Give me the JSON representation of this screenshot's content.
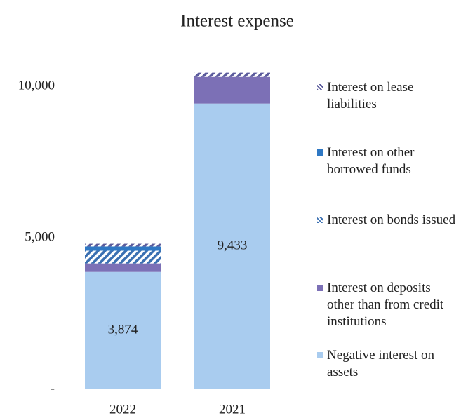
{
  "chart_data": {
    "type": "stacked_bar",
    "title": "Interest expense",
    "categories": [
      "2022",
      "2021"
    ],
    "series": [
      {
        "name": "Negative interest on assets",
        "color": "#a9ccef",
        "values": [
          3874,
          9433
        ],
        "value_labels": [
          "3,874",
          "9,433"
        ]
      },
      {
        "name": "Interest on deposits other than from credit institutions",
        "color": "#7c70b6",
        "values": [
          280,
          880
        ]
      },
      {
        "name": "Interest on bonds issued",
        "color": "#3b70b2",
        "pattern": "hatch",
        "values": [
          420,
          0
        ]
      },
      {
        "name": "Interest on other borrowed funds",
        "color": "#2f78c4",
        "values": [
          140,
          0
        ]
      },
      {
        "name": "Interest on lease liabilities",
        "color": "#5b5b9c",
        "pattern": "hatch",
        "values": [
          90,
          140
        ]
      }
    ],
    "ylim": [
      0,
      11000
    ],
    "yticks": [
      {
        "value": 0,
        "label": "-"
      },
      {
        "value": 5000,
        "label": "5,000"
      },
      {
        "value": 10000,
        "label": "10,000"
      }
    ],
    "grid": false,
    "legend": "right"
  }
}
